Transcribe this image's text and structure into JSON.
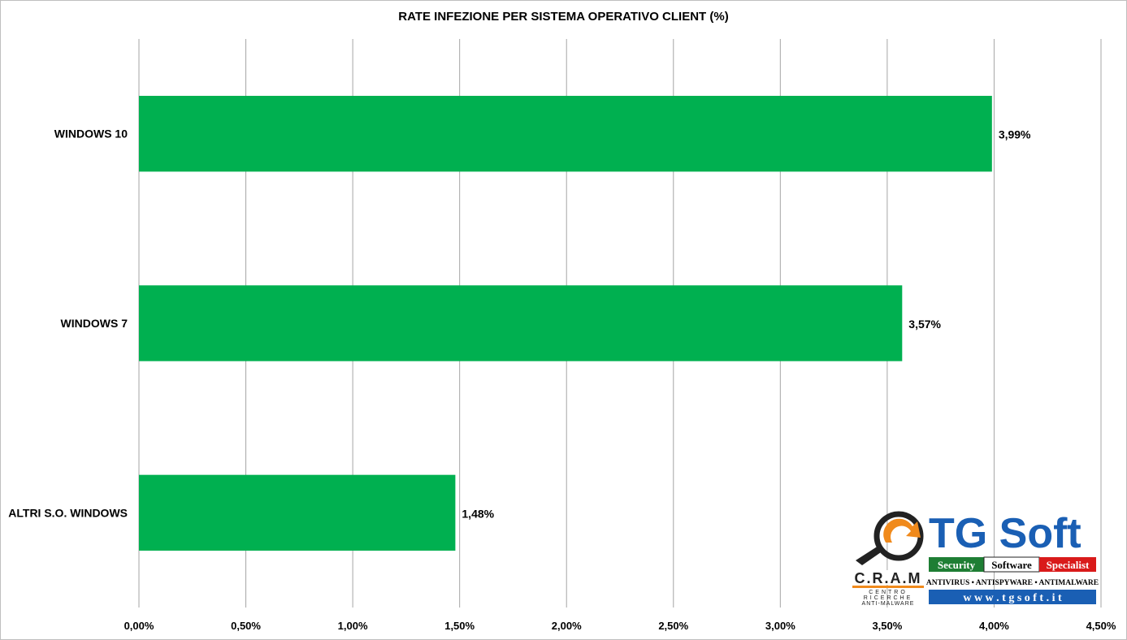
{
  "chart_data": {
    "type": "bar",
    "orientation": "horizontal",
    "title": "RATE INFEZIONE PER SISTEMA OPERATIVO CLIENT (%)",
    "categories": [
      "WINDOWS 10",
      "WINDOWS 7",
      "ALTRI S.O. WINDOWS"
    ],
    "values": [
      3.99,
      3.57,
      1.48
    ],
    "data_labels": [
      "3,99%",
      "3,57%",
      "1,48%"
    ],
    "xlim": [
      0,
      4.5
    ],
    "x_ticks": [
      0,
      0.5,
      1.0,
      1.5,
      2.0,
      2.5,
      3.0,
      3.5,
      4.0,
      4.5
    ],
    "x_tick_labels": [
      "0,00%",
      "0,50%",
      "1,00%",
      "1,50%",
      "2,00%",
      "2,50%",
      "3,00%",
      "3,50%",
      "4,00%",
      "4,50%"
    ],
    "xlabel": "",
    "ylabel": "",
    "grid": "vertical",
    "legend": "none",
    "bar_color": "#00b050"
  },
  "logo": {
    "brand": "TG Soft",
    "tagline_words": [
      "Security",
      "Software",
      "Specialist"
    ],
    "subline": "ANTIVIRUS • ANTISPYWARE • ANTIMALWARE",
    "url": "w w w . t g s o f t . i t",
    "cram": "C.R.A.M",
    "cram_sub": [
      "CENTRO",
      "RICERCHE",
      "ANTI-MALWARE"
    ],
    "colors": {
      "blue": "#1a5fb4",
      "orange": "#f08a1c",
      "green": "#1e7e34",
      "red": "#d91a1a",
      "dark": "#222222"
    }
  }
}
